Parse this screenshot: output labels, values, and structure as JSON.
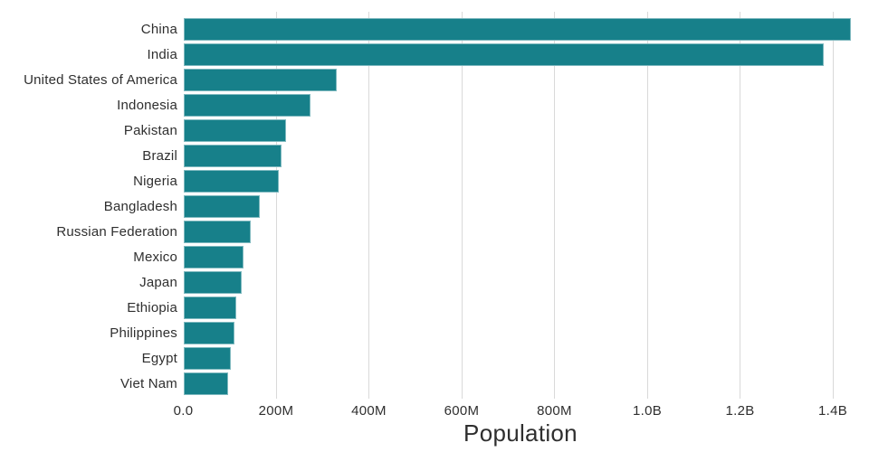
{
  "chart_data": {
    "type": "bar",
    "orientation": "horizontal",
    "title": "",
    "xlabel": "Population",
    "ylabel": "",
    "categories": [
      "China",
      "India",
      "United States of America",
      "Indonesia",
      "Pakistan",
      "Brazil",
      "Nigeria",
      "Bangladesh",
      "Russian Federation",
      "Mexico",
      "Japan",
      "Ethiopia",
      "Philippines",
      "Egypt",
      "Viet Nam"
    ],
    "values_millions": [
      1439.3,
      1380.0,
      331.0,
      273.5,
      220.9,
      212.6,
      206.1,
      164.7,
      145.9,
      128.9,
      126.5,
      115.0,
      109.6,
      102.3,
      97.3
    ],
    "xlim_millions": [
      0,
      1450
    ],
    "x_ticks": [
      {
        "value_millions": 0,
        "label": "0.0"
      },
      {
        "value_millions": 200,
        "label": "200M"
      },
      {
        "value_millions": 400,
        "label": "400M"
      },
      {
        "value_millions": 600,
        "label": "600M"
      },
      {
        "value_millions": 800,
        "label": "800M"
      },
      {
        "value_millions": 1000,
        "label": "1.0B"
      },
      {
        "value_millions": 1200,
        "label": "1.2B"
      },
      {
        "value_millions": 1400,
        "label": "1.4B"
      }
    ],
    "grid": "vertical",
    "legend_position": "none",
    "colors": {
      "bar": "#17808a",
      "gridline": "#d9d9d9",
      "text": "#2f2f2f",
      "background": "#ffffff"
    }
  }
}
